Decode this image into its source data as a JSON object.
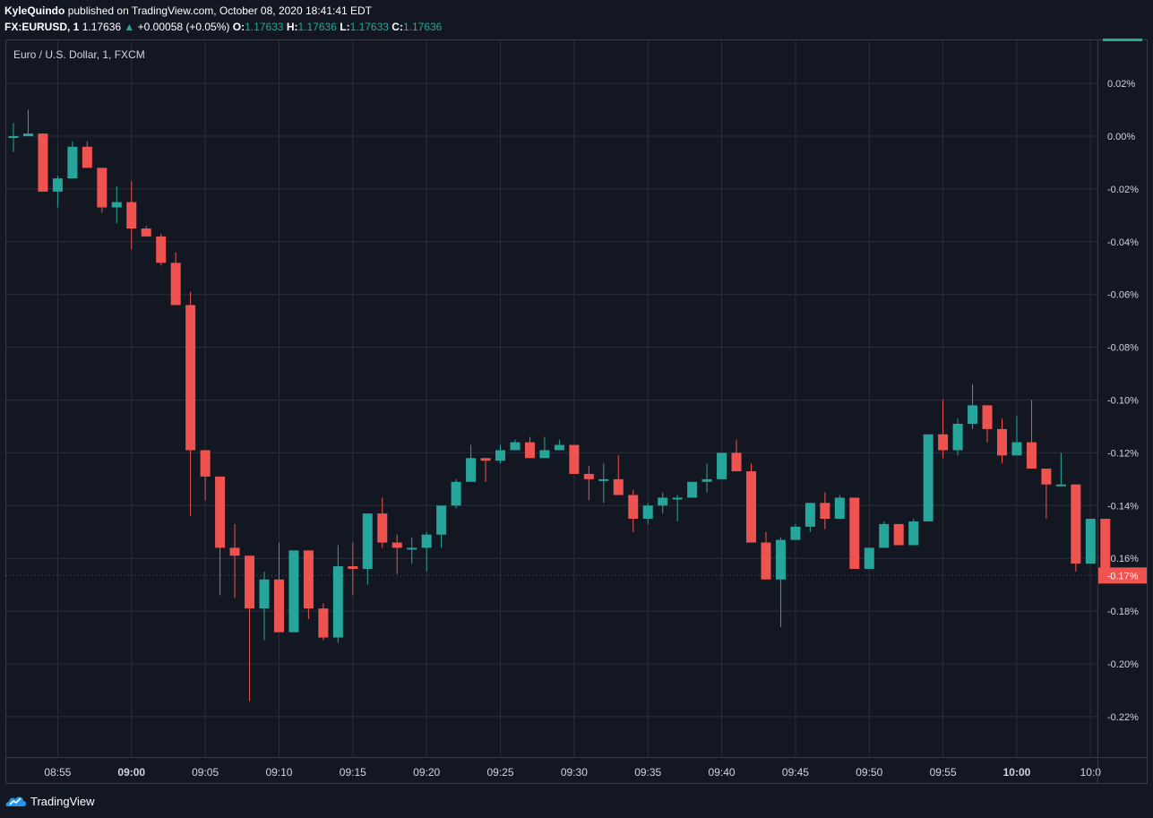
{
  "header": {
    "author": "KyleQuindo",
    "published": "published on TradingView.com, October 08, 2020 18:41:41 EDT",
    "symbol": "FX:EURUSD, 1",
    "price": "1.17636",
    "change": "+0.00058 (+0.05%)",
    "o_label": "O:",
    "o_value": "1.17633",
    "h_label": "H:",
    "h_value": "1.17636",
    "l_label": "L:",
    "l_value": "1.17633",
    "c_label": "C:",
    "c_value": "1.17636"
  },
  "legend_title": "Euro / U.S. Dollar, 1, FXCM",
  "brand": "TradingView",
  "colors": {
    "up": "#26a69a",
    "down": "#ef5350",
    "bg": "#131722",
    "grid": "#2a2e39"
  },
  "chart_data": {
    "type": "candlestick",
    "ylim": [
      -0.235,
      0.035
    ],
    "y_ticks": [
      0.02,
      0.0,
      -0.02,
      -0.04,
      -0.06,
      -0.08,
      -0.1,
      -0.12,
      -0.14,
      -0.16,
      -0.18,
      -0.2,
      -0.22
    ],
    "y_tick_labels": [
      "0.02%",
      "0.00%",
      "-0.02%",
      "-0.04%",
      "-0.06%",
      "-0.08%",
      "-0.10%",
      "-0.12%",
      "-0.14%",
      "-0.16%",
      "-0.18%",
      "-0.20%",
      "-0.22%"
    ],
    "last_value_label": "-0.17%",
    "last_value": -0.1665,
    "x_tick_labels": [
      "08:55",
      "09:00",
      "09:05",
      "09:10",
      "09:15",
      "09:20",
      "09:25",
      "09:30",
      "09:35",
      "09:40",
      "09:45",
      "09:50",
      "09:55",
      "10:00",
      "10:0"
    ],
    "x_tick_bold": [
      "09:00",
      "10:00"
    ],
    "candles": [
      {
        "t": "08:52",
        "o": 0.0,
        "h": 0.005,
        "l": -0.006,
        "c": 0.0
      },
      {
        "t": "08:53",
        "o": 0.0,
        "h": 0.01,
        "l": 0.0,
        "c": 0.001
      },
      {
        "t": "08:54",
        "o": 0.001,
        "h": 0.001,
        "l": -0.021,
        "c": -0.021
      },
      {
        "t": "08:55",
        "o": -0.021,
        "h": -0.015,
        "l": -0.027,
        "c": -0.016
      },
      {
        "t": "08:56",
        "o": -0.016,
        "h": -0.002,
        "l": -0.016,
        "c": -0.004
      },
      {
        "t": "08:57",
        "o": -0.004,
        "h": -0.002,
        "l": -0.012,
        "c": -0.012
      },
      {
        "t": "08:58",
        "o": -0.012,
        "h": -0.012,
        "l": -0.029,
        "c": -0.027
      },
      {
        "t": "08:59",
        "o": -0.027,
        "h": -0.019,
        "l": -0.033,
        "c": -0.025
      },
      {
        "t": "09:00",
        "o": -0.025,
        "h": -0.017,
        "l": -0.043,
        "c": -0.035
      },
      {
        "t": "09:01",
        "o": -0.035,
        "h": -0.034,
        "l": -0.038,
        "c": -0.038
      },
      {
        "t": "09:02",
        "o": -0.038,
        "h": -0.037,
        "l": -0.049,
        "c": -0.048
      },
      {
        "t": "09:03",
        "o": -0.048,
        "h": -0.044,
        "l": -0.064,
        "c": -0.064
      },
      {
        "t": "09:04",
        "o": -0.064,
        "h": -0.059,
        "l": -0.144,
        "c": -0.119
      },
      {
        "t": "09:05",
        "o": -0.119,
        "h": -0.119,
        "l": -0.138,
        "c": -0.129
      },
      {
        "t": "09:06",
        "o": -0.129,
        "h": -0.129,
        "l": -0.174,
        "c": -0.156
      },
      {
        "t": "09:07",
        "o": -0.156,
        "h": -0.147,
        "l": -0.175,
        "c": -0.159
      },
      {
        "t": "09:08",
        "o": -0.159,
        "h": -0.159,
        "l": -0.214,
        "c": -0.179
      },
      {
        "t": "09:09",
        "o": -0.179,
        "h": -0.165,
        "l": -0.191,
        "c": -0.168
      },
      {
        "t": "09:10",
        "o": -0.168,
        "h": -0.154,
        "l": -0.188,
        "c": -0.188
      },
      {
        "t": "09:11",
        "o": -0.188,
        "h": -0.157,
        "l": -0.188,
        "c": -0.157
      },
      {
        "t": "09:12",
        "o": -0.157,
        "h": -0.157,
        "l": -0.183,
        "c": -0.179
      },
      {
        "t": "09:13",
        "o": -0.179,
        "h": -0.177,
        "l": -0.191,
        "c": -0.19
      },
      {
        "t": "09:14",
        "o": -0.19,
        "h": -0.155,
        "l": -0.192,
        "c": -0.163
      },
      {
        "t": "09:15",
        "o": -0.163,
        "h": -0.154,
        "l": -0.174,
        "c": -0.164
      },
      {
        "t": "09:16",
        "o": -0.164,
        "h": -0.143,
        "l": -0.17,
        "c": -0.143
      },
      {
        "t": "09:17",
        "o": -0.143,
        "h": -0.137,
        "l": -0.156,
        "c": -0.154
      },
      {
        "t": "09:18",
        "o": -0.154,
        "h": -0.151,
        "l": -0.166,
        "c": -0.156
      },
      {
        "t": "09:19",
        "o": -0.156,
        "h": -0.152,
        "l": -0.162,
        "c": -0.156
      },
      {
        "t": "09:20",
        "o": -0.156,
        "h": -0.15,
        "l": -0.165,
        "c": -0.151
      },
      {
        "t": "09:21",
        "o": -0.151,
        "h": -0.14,
        "l": -0.156,
        "c": -0.14
      },
      {
        "t": "09:22",
        "o": -0.14,
        "h": -0.13,
        "l": -0.141,
        "c": -0.131
      },
      {
        "t": "09:23",
        "o": -0.131,
        "h": -0.117,
        "l": -0.131,
        "c": -0.122
      },
      {
        "t": "09:24",
        "o": -0.122,
        "h": -0.122,
        "l": -0.131,
        "c": -0.123
      },
      {
        "t": "09:25",
        "o": -0.123,
        "h": -0.117,
        "l": -0.124,
        "c": -0.119
      },
      {
        "t": "09:26",
        "o": -0.119,
        "h": -0.115,
        "l": -0.119,
        "c": -0.116
      },
      {
        "t": "09:27",
        "o": -0.116,
        "h": -0.114,
        "l": -0.122,
        "c": -0.122
      },
      {
        "t": "09:28",
        "o": -0.122,
        "h": -0.114,
        "l": -0.122,
        "c": -0.119
      },
      {
        "t": "09:29",
        "o": -0.119,
        "h": -0.115,
        "l": -0.119,
        "c": -0.117
      },
      {
        "t": "09:30",
        "o": -0.117,
        "h": -0.117,
        "l": -0.128,
        "c": -0.128
      },
      {
        "t": "09:31",
        "o": -0.128,
        "h": -0.125,
        "l": -0.138,
        "c": -0.13
      },
      {
        "t": "09:32",
        "o": -0.13,
        "h": -0.124,
        "l": -0.139,
        "c": -0.13
      },
      {
        "t": "09:33",
        "o": -0.13,
        "h": -0.121,
        "l": -0.136,
        "c": -0.136
      },
      {
        "t": "09:34",
        "o": -0.136,
        "h": -0.134,
        "l": -0.15,
        "c": -0.145
      },
      {
        "t": "09:35",
        "o": -0.145,
        "h": -0.139,
        "l": -0.147,
        "c": -0.14
      },
      {
        "t": "09:36",
        "o": -0.14,
        "h": -0.135,
        "l": -0.143,
        "c": -0.137
      },
      {
        "t": "09:37",
        "o": -0.137,
        "h": -0.136,
        "l": -0.146,
        "c": -0.137
      },
      {
        "t": "09:38",
        "o": -0.137,
        "h": -0.132,
        "l": -0.137,
        "c": -0.131
      },
      {
        "t": "09:39",
        "o": -0.131,
        "h": -0.124,
        "l": -0.135,
        "c": -0.13
      },
      {
        "t": "09:40",
        "o": -0.13,
        "h": -0.12,
        "l": -0.13,
        "c": -0.12
      },
      {
        "t": "09:41",
        "o": -0.12,
        "h": -0.115,
        "l": -0.127,
        "c": -0.127
      },
      {
        "t": "09:42",
        "o": -0.127,
        "h": -0.124,
        "l": -0.154,
        "c": -0.154
      },
      {
        "t": "09:43",
        "o": -0.154,
        "h": -0.15,
        "l": -0.168,
        "c": -0.168
      },
      {
        "t": "09:44",
        "o": -0.168,
        "h": -0.152,
        "l": -0.186,
        "c": -0.153
      },
      {
        "t": "09:45",
        "o": -0.153,
        "h": -0.147,
        "l": -0.153,
        "c": -0.148
      },
      {
        "t": "09:46",
        "o": -0.148,
        "h": -0.139,
        "l": -0.15,
        "c": -0.139
      },
      {
        "t": "09:47",
        "o": -0.139,
        "h": -0.135,
        "l": -0.149,
        "c": -0.145
      },
      {
        "t": "09:48",
        "o": -0.145,
        "h": -0.136,
        "l": -0.145,
        "c": -0.137
      },
      {
        "t": "09:49",
        "o": -0.137,
        "h": -0.137,
        "l": -0.164,
        "c": -0.164
      },
      {
        "t": "09:50",
        "o": -0.164,
        "h": -0.156,
        "l": -0.164,
        "c": -0.156
      },
      {
        "t": "09:51",
        "o": -0.156,
        "h": -0.146,
        "l": -0.156,
        "c": -0.147
      },
      {
        "t": "09:52",
        "o": -0.147,
        "h": -0.147,
        "l": -0.155,
        "c": -0.155
      },
      {
        "t": "09:53",
        "o": -0.155,
        "h": -0.145,
        "l": -0.155,
        "c": -0.146
      },
      {
        "t": "09:54",
        "o": -0.146,
        "h": -0.113,
        "l": -0.146,
        "c": -0.113
      },
      {
        "t": "09:55",
        "o": -0.113,
        "h": -0.1,
        "l": -0.122,
        "c": -0.119
      },
      {
        "t": "09:56",
        "o": -0.119,
        "h": -0.107,
        "l": -0.121,
        "c": -0.109
      },
      {
        "t": "09:57",
        "o": -0.109,
        "h": -0.094,
        "l": -0.111,
        "c": -0.102
      },
      {
        "t": "09:58",
        "o": -0.102,
        "h": -0.102,
        "l": -0.116,
        "c": -0.111
      },
      {
        "t": "09:59",
        "o": -0.111,
        "h": -0.107,
        "l": -0.124,
        "c": -0.121
      },
      {
        "t": "10:00",
        "o": -0.121,
        "h": -0.106,
        "l": -0.121,
        "c": -0.116
      },
      {
        "t": "10:01",
        "o": -0.116,
        "h": -0.1,
        "l": -0.126,
        "c": -0.126
      },
      {
        "t": "10:02",
        "o": -0.126,
        "h": -0.126,
        "l": -0.145,
        "c": -0.132
      },
      {
        "t": "10:03",
        "o": -0.132,
        "h": -0.12,
        "l": -0.132,
        "c": -0.132
      },
      {
        "t": "10:04",
        "o": -0.132,
        "h": -0.132,
        "l": -0.165,
        "c": -0.162
      },
      {
        "t": "10:05",
        "o": -0.162,
        "h": -0.145,
        "l": -0.162,
        "c": -0.145
      },
      {
        "t": "10:06",
        "o": -0.145,
        "h": -0.145,
        "l": -0.168,
        "c": -0.166
      }
    ]
  }
}
